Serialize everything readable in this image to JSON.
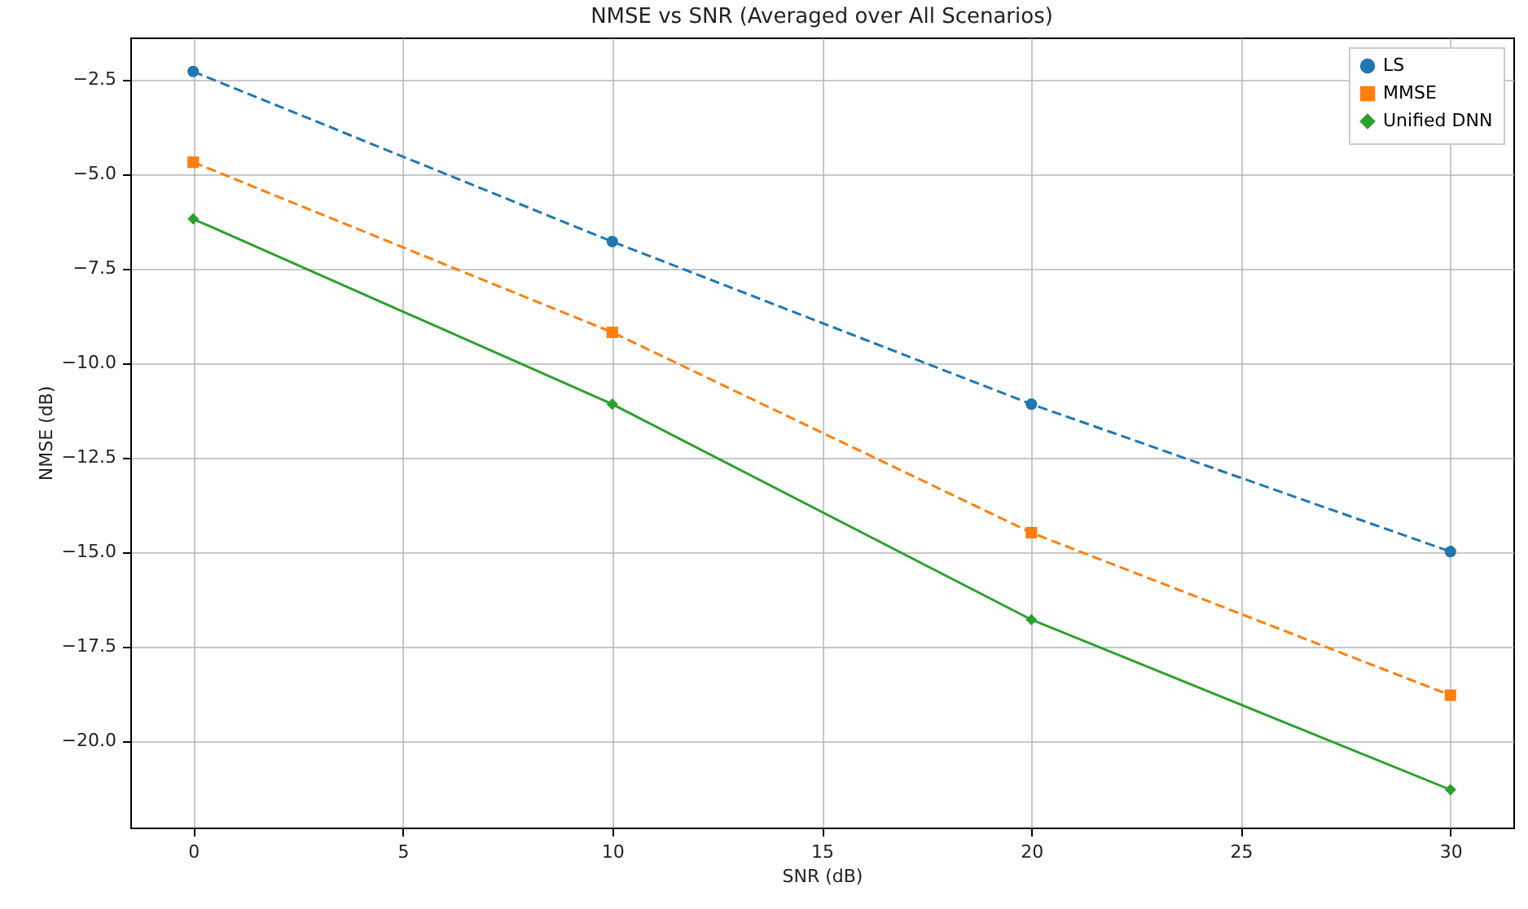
{
  "chart_data": {
    "type": "line",
    "title": "NMSE vs SNR (Averaged over All Scenarios)",
    "xlabel": "SNR (dB)",
    "ylabel": "NMSE (dB)",
    "x": [
      0,
      10,
      20,
      30
    ],
    "series": [
      {
        "name": "LS",
        "color": "#1f77b4",
        "marker": "circle",
        "line_style": "dashed",
        "values": [
          -2.3,
          -6.8,
          -11.1,
          -15.0
        ]
      },
      {
        "name": "MMSE",
        "color": "#ff7f0e",
        "marker": "square",
        "line_style": "dashed",
        "values": [
          -4.7,
          -9.2,
          -14.5,
          -18.8
        ]
      },
      {
        "name": "Unified DNN",
        "color": "#2ca02c",
        "marker": "diamond",
        "line_style": "solid",
        "values": [
          -6.2,
          -11.1,
          -16.8,
          -21.3
        ]
      }
    ],
    "xlim": [
      -1.5,
      31.5
    ],
    "xticks": [
      0,
      5,
      10,
      15,
      20,
      25,
      30
    ],
    "ylim": [
      -22.3,
      -1.4
    ],
    "yticks": [
      {
        "value": -20,
        "label": "−20.0"
      },
      -17.5,
      {
        "value": -15,
        "label": "−15.0"
      },
      -12.5,
      {
        "value": -10,
        "label": "−10.0"
      },
      -7.5,
      {
        "value": -5,
        "label": "−5.0"
      },
      -2.5
    ],
    "grid": true,
    "legend": "top right"
  }
}
